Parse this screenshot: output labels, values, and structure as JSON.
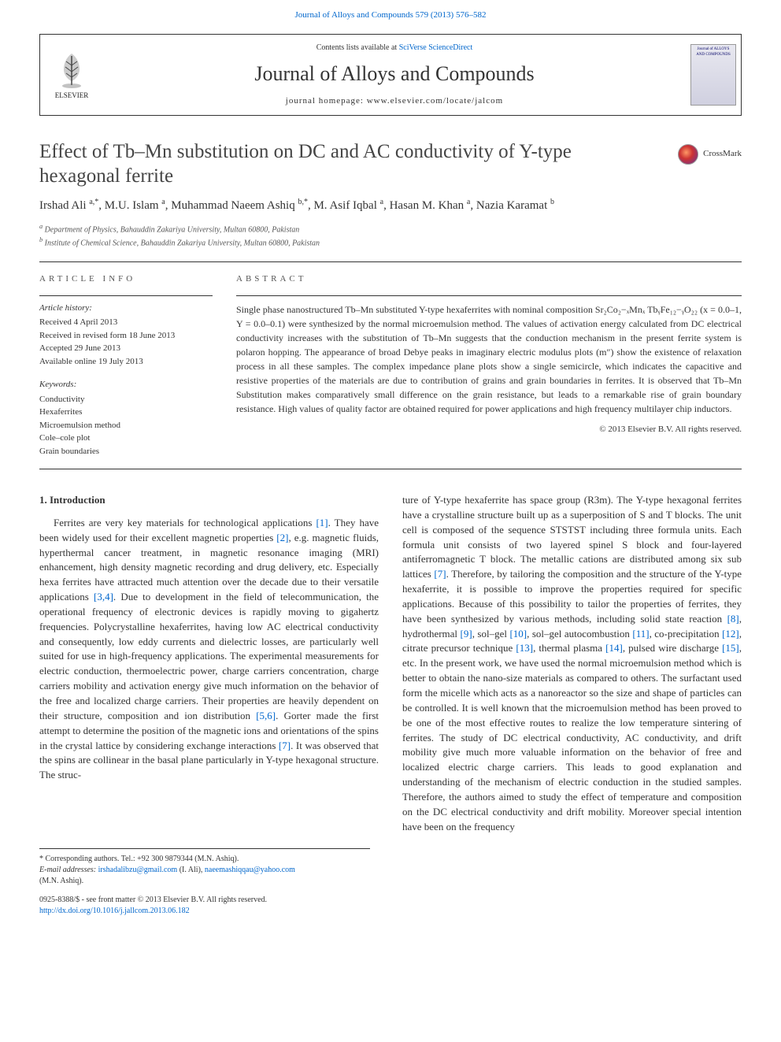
{
  "header": {
    "journal_ref": "Journal of Alloys and Compounds 579 (2013) 576–582"
  },
  "contents_box": {
    "available_prefix": "Contents lists available at ",
    "available_link": "SciVerse ScienceDirect",
    "journal_title": "Journal of Alloys and Compounds",
    "homepage_prefix": "journal homepage: ",
    "homepage_url": "www.elsevier.com/locate/jalcom",
    "elsevier_label": "ELSEVIER",
    "cover_label": "Journal of ALLOYS AND COMPOUNDS"
  },
  "crossmark_label": "CrossMark",
  "title": "Effect of Tb–Mn substitution on DC and AC conductivity of Y-type hexagonal ferrite",
  "authors_html": "Irshad Ali <sup>a,*</sup>, M.U. Islam <sup>a</sup>, Muhammad Naeem Ashiq <sup>b,*</sup>, M. Asif Iqbal <sup>a</sup>, Hasan M. Khan <sup>a</sup>, Nazia Karamat <sup>b</sup>",
  "affiliations": {
    "a": "Department of Physics, Bahauddin Zakariya University, Multan 60800, Pakistan",
    "b": "Institute of Chemical Science, Bahauddin Zakariya University, Multan 60800, Pakistan"
  },
  "article_info": {
    "heading": "article info",
    "history_label": "Article history:",
    "history": [
      "Received 4 April 2013",
      "Received in revised form 18 June 2013",
      "Accepted 29 June 2013",
      "Available online 19 July 2013"
    ],
    "keywords_label": "Keywords:",
    "keywords": [
      "Conductivity",
      "Hexaferrites",
      "Microemulsion method",
      "Cole–cole plot",
      "Grain boundaries"
    ]
  },
  "abstract": {
    "heading": "abstract",
    "text": "Single phase nanostructured Tb–Mn substituted Y-type hexaferrites with nominal composition Sr₂Co₂−ₓMnₓ TbᵧFe₁₂−ᵧO₂₂ (x = 0.0–1, Y = 0.0–0.1) were synthesized by the normal microemulsion method. The values of activation energy calculated from DC electrical conductivity increases with the substitution of Tb–Mn suggests that the conduction mechanism in the present ferrite system is polaron hopping. The appearance of broad Debye peaks in imaginary electric modulus plots (m″) show the existence of relaxation process in all these samples. The complex impedance plane plots show a single semicircle, which indicates the capacitive and resistive properties of the materials are due to contribution of grains and grain boundaries in ferrites. It is observed that Tb–Mn Substitution makes comparatively small difference on the grain resistance, but leads to a remarkable rise of grain boundary resistance. High values of quality factor are obtained required for power applications and high frequency multilayer chip inductors.",
    "copyright": "© 2013 Elsevier B.V. All rights reserved."
  },
  "body": {
    "section_heading": "1. Introduction",
    "col1": "Ferrites are very key materials for technological applications [1]. They have been widely used for their excellent magnetic properties [2], e.g. magnetic fluids, hyperthermal cancer treatment, in magnetic resonance imaging (MRI) enhancement, high density magnetic recording and drug delivery, etc. Especially hexa ferrites have attracted much attention over the decade due to their versatile applications [3,4]. Due to development in the field of telecommunication, the operational frequency of electronic devices is rapidly moving to gigahertz frequencies. Polycrystalline hexaferrites, having low AC electrical conductivity and consequently, low eddy currents and dielectric losses, are particularly well suited for use in high-frequency applications. The experimental measurements for electric conduction, thermoelectric power, charge carriers concentration, charge carriers mobility and activation energy give much information on the behavior of the free and localized charge carriers. Their properties are heavily dependent on their structure, composition and ion distribution [5,6]. Gorter made the first attempt to determine the position of the magnetic ions and orientations of the spins in the crystal lattice by considering exchange interactions [7]. It was observed that the spins are collinear in the basal plane particularly in Y-type hexagonal structure. The struc-",
    "col2": "ture of Y-type hexaferrite has space group (R3m). The Y-type hexagonal ferrites have a crystalline structure built up as a superposition of S and T blocks. The unit cell is composed of the sequence STSTST including three formula units. Each formula unit consists of two layered spinel S block and four-layered antiferromagnetic T block. The metallic cations are distributed among six sub lattices [7]. Therefore, by tailoring the composition and the structure of the Y-type hexaferrite, it is possible to improve the properties required for specific applications. Because of this possibility to tailor the properties of ferrites, they have been synthesized by various methods, including solid state reaction [8], hydrothermal [9], sol–gel [10], sol–gel autocombustion [11], co-precipitation [12], citrate precursor technique [13], thermal plasma [14], pulsed wire discharge [15], etc. In the present work, we have used the normal microemulsion method which is better to obtain the nano-size materials as compared to others. The surfactant used form the micelle which acts as a nanoreactor so the size and shape of particles can be controlled. It is well known that the microemulsion method has been proved to be one of the most effective routes to realize the low temperature sintering of ferrites. The study of DC electrical conductivity, AC conductivity, and drift mobility give much more valuable information on the behavior of free and localized electric charge carriers. This leads to good explanation and understanding of the mechanism of electric conduction in the studied samples. Therefore, the authors aimed to study the effect of temperature and composition on the DC electrical conductivity and drift mobility. Moreover special intention have been on the frequency",
    "refs_col1": [
      "[1]",
      "[2]",
      "[3,4]",
      "[5,6]",
      "[7]"
    ],
    "refs_col2": [
      "[7]",
      "[8]",
      "[9]",
      "[10]",
      "[11]",
      "[12]",
      "[13]",
      "[14]",
      "[15]"
    ]
  },
  "footnotes": {
    "corresponding": "* Corresponding authors. Tel.: +92 300 9879344 (M.N. Ashiq).",
    "email_label": "E-mail addresses: ",
    "email1": "irshadalibzu@gmail.com",
    "email1_who": " (I. Ali), ",
    "email2": "naeemashiqqau@yahoo.com",
    "email2_who": " (M.N. Ashiq)."
  },
  "footer": {
    "issn": "0925-8388/$ - see front matter © 2013 Elsevier B.V. All rights reserved.",
    "doi": "http://dx.doi.org/10.1016/j.jallcom.2013.06.182"
  },
  "colors": {
    "link": "#0066cc",
    "text": "#333333",
    "heading": "#454545",
    "rule": "#333333"
  }
}
